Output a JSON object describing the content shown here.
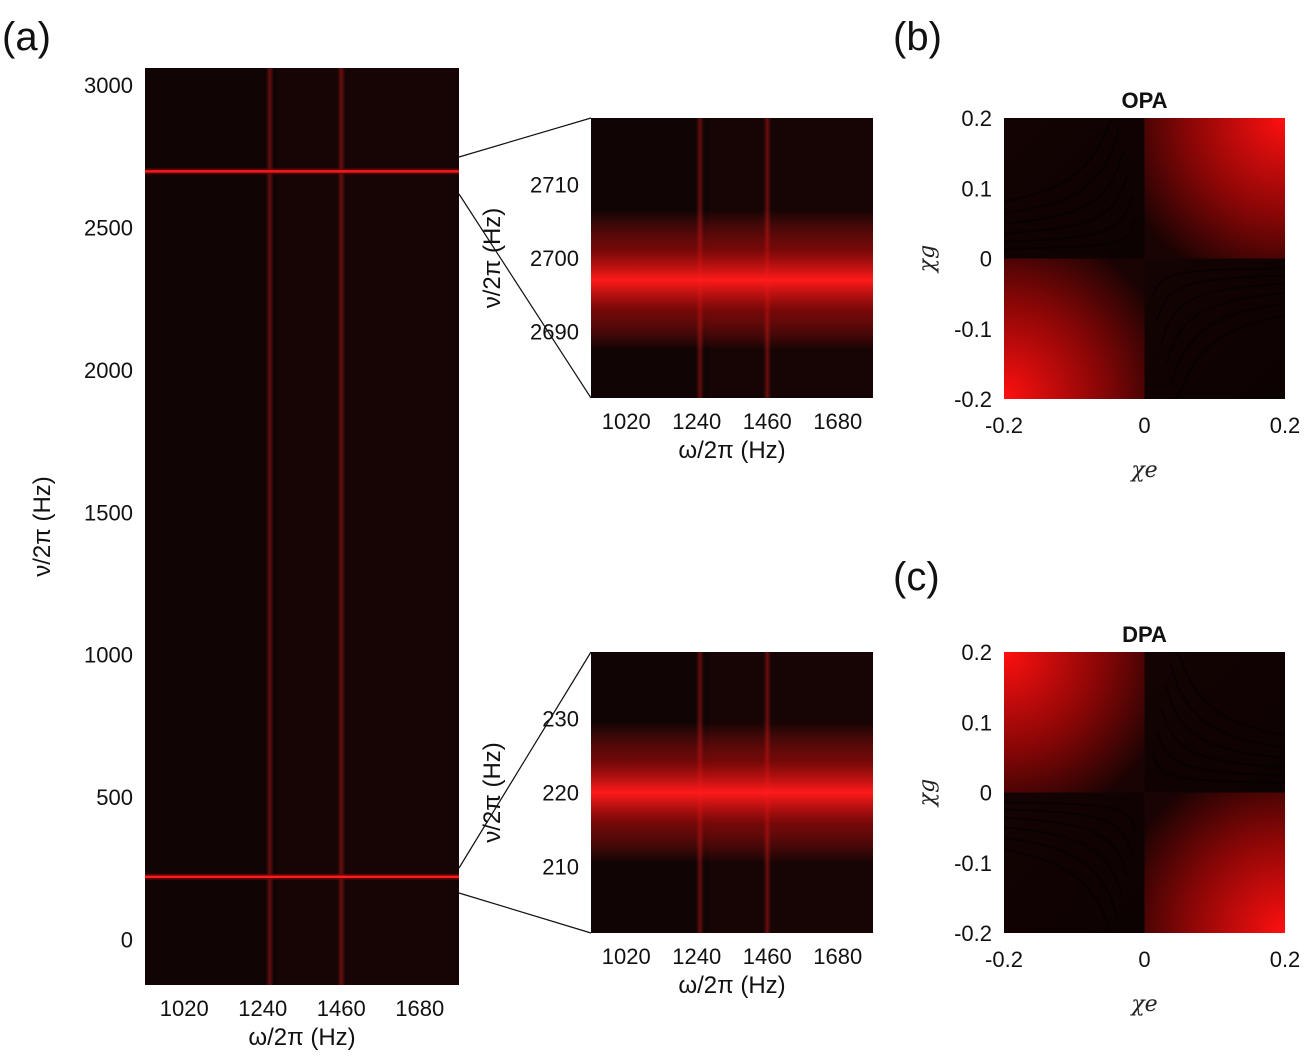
{
  "panels": {
    "a": {
      "label": "(a)"
    },
    "b": {
      "label": "(b)"
    },
    "c": {
      "label": "(c)"
    }
  },
  "colors": {
    "dark": "#110404",
    "peak": "#ff1a1a",
    "mid": "#7a0808"
  },
  "chart_data": [
    {
      "id": "main",
      "type": "heatmap",
      "title": "",
      "xlabel": "ω/2π (Hz)",
      "ylabel": "ν/2π (Hz)",
      "xticks": [
        "1020",
        "1240",
        "1460",
        "1680"
      ],
      "yticks": [
        "0",
        "500",
        "1000",
        "1500",
        "2000",
        "2500",
        "3000"
      ],
      "xlim": [
        910,
        1790
      ],
      "ylim": [
        -160,
        3060
      ],
      "horizontal_lines": [
        220,
        2697
      ],
      "vertical_lines": [
        1260,
        1460
      ]
    },
    {
      "id": "zoom_top",
      "type": "heatmap",
      "title": "",
      "xlabel": "ω/2π (Hz)",
      "ylabel": "ν/2π (Hz)",
      "xticks": [
        "1020",
        "1240",
        "1460",
        "1680"
      ],
      "yticks": [
        "2690",
        "2700",
        "2710"
      ],
      "xlim": [
        910,
        1790
      ],
      "ylim": [
        2681,
        2719
      ],
      "band_center": 2697,
      "vertical_lines": [
        1250,
        1460
      ]
    },
    {
      "id": "zoom_bottom",
      "type": "heatmap",
      "title": "",
      "xlabel": "ω/2π (Hz)",
      "ylabel": "ν/2π (Hz)",
      "xticks": [
        "1020",
        "1240",
        "1460",
        "1680"
      ],
      "yticks": [
        "210",
        "220",
        "230"
      ],
      "xlim": [
        910,
        1790
      ],
      "ylim": [
        201,
        239
      ],
      "band_center": 220,
      "vertical_lines": [
        1250,
        1460
      ]
    },
    {
      "id": "opa",
      "type": "heatmap",
      "title": "OPA",
      "xlabel": "χe",
      "ylabel": "χg",
      "xticks": [
        "-0.2",
        "0",
        "0.2"
      ],
      "yticks": [
        "-0.2",
        "-0.1",
        "0",
        "0.1",
        "0.2"
      ],
      "xlim": [
        -0.2,
        0.2
      ],
      "ylim": [
        -0.2,
        0.2
      ],
      "bright_quadrants": [
        "top-right",
        "bottom-left"
      ]
    },
    {
      "id": "dpa",
      "type": "heatmap",
      "title": "DPA",
      "xlabel": "χe",
      "ylabel": "χg",
      "xticks": [
        "-0.2",
        "0",
        "0.2"
      ],
      "yticks": [
        "-0.2",
        "-0.1",
        "0",
        "0.1",
        "0.2"
      ],
      "xlim": [
        -0.2,
        0.2
      ],
      "ylim": [
        -0.2,
        0.2
      ],
      "bright_quadrants": [
        "top-left",
        "bottom-right"
      ]
    }
  ]
}
